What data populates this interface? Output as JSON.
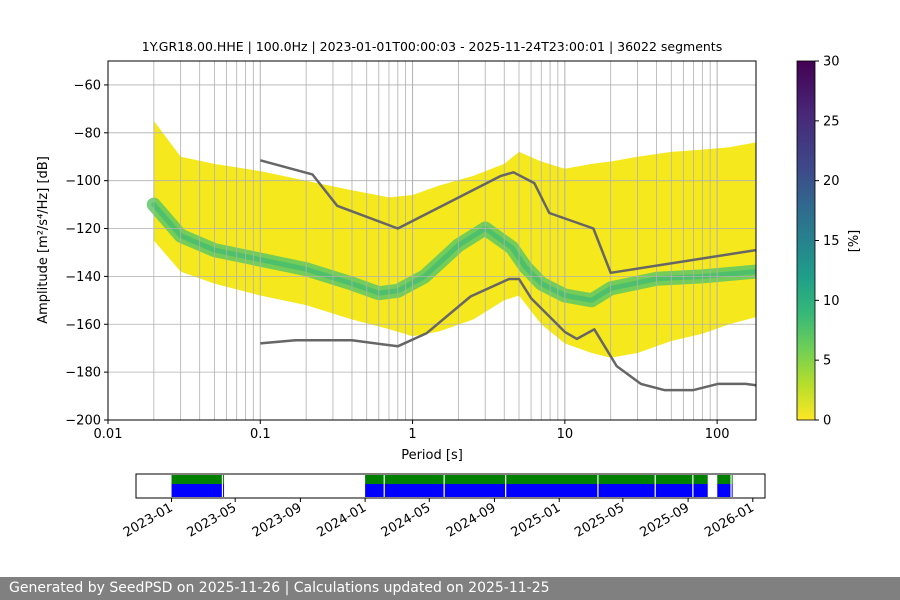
{
  "title": "1Y.GR18.00.HHE | 100.0Hz | 2023-01-01T00:00:03 - 2025-11-24T23:00:01 | 36022 segments",
  "footer": "Generated by SeedPSD on 2025-11-26 | Calculations updated on 2025-11-25",
  "chart_data": [
    {
      "type": "heatmap",
      "title": "1Y.GR18.00.HHE | 100.0Hz | 2023-01-01T00:00:03 - 2025-11-24T23:00:01 | 36022 segments",
      "xlabel": "Period [s]",
      "ylabel": "Amplitude [m²/s⁴/Hz] [dB]",
      "x_scale": "log",
      "xlim": [
        0.01,
        180
      ],
      "ylim": [
        -200,
        -50
      ],
      "x_ticks": [
        {
          "v": 0.01,
          "label": "0.01"
        },
        {
          "v": 0.1,
          "label": "0.1"
        },
        {
          "v": 1,
          "label": "1"
        },
        {
          "v": 10,
          "label": "10"
        },
        {
          "v": 100,
          "label": "100"
        }
      ],
      "y_ticks": [
        -200,
        -180,
        -160,
        -140,
        -120,
        -100,
        -80,
        -60
      ],
      "grid": true,
      "colormap": "viridis",
      "colorbar": {
        "label": "[%]",
        "range": [
          0,
          30
        ],
        "ticks": [
          0,
          5,
          10,
          15,
          20,
          25,
          30
        ]
      },
      "period_range": [
        0.02,
        180
      ],
      "psd_envelope": {
        "period": [
          0.02,
          0.03,
          0.05,
          0.1,
          0.2,
          0.4,
          0.7,
          1.0,
          1.5,
          2.5,
          4.0,
          5.0,
          7.0,
          10,
          15,
          20,
          30,
          50,
          80,
          120,
          180
        ],
        "upper_db": [
          -75,
          -90,
          -93,
          -96,
          -100,
          -104,
          -107,
          -106,
          -102,
          -98,
          -93,
          -88,
          -92,
          -95,
          -93,
          -92,
          -90,
          -88,
          -87,
          -86,
          -84
        ],
        "lower_db": [
          -125,
          -138,
          -143,
          -148,
          -152,
          -158,
          -162,
          -165,
          -163,
          -158,
          -150,
          -148,
          -160,
          -168,
          -172,
          -174,
          -172,
          -167,
          -164,
          -160,
          -157
        ]
      },
      "psd_mode": {
        "period": [
          0.02,
          0.03,
          0.05,
          0.1,
          0.2,
          0.4,
          0.6,
          0.8,
          1.2,
          2.0,
          3.0,
          4.5,
          5.5,
          7.0,
          10,
          15,
          20,
          40,
          80,
          180
        ],
        "db": [
          -110,
          -123,
          -129,
          -133,
          -137,
          -143,
          -147,
          -146,
          -140,
          -127,
          -120,
          -128,
          -136,
          -143,
          -148,
          -150,
          -145,
          -141,
          -140,
          -138
        ]
      },
      "model_lines": {
        "high": {
          "period": [
            0.1,
            0.22,
            0.32,
            0.8,
            3.8,
            4.6,
            6.3,
            7.9,
            15.4,
            20,
            180
          ],
          "db": [
            -91.5,
            -97.4,
            -110.5,
            -120,
            -98,
            -96.5,
            -101,
            -113.5,
            -120,
            -138.5,
            -129
          ]
        },
        "low": {
          "period": [
            0.1,
            0.17,
            0.4,
            0.8,
            1.24,
            2.4,
            4.3,
            5.0,
            6.0,
            10,
            12,
            15.6,
            21.9,
            31.6,
            45,
            70,
            101,
            154,
            180
          ],
          "db": [
            -168,
            -166.7,
            -166.7,
            -169.2,
            -163.7,
            -148.4,
            -141.1,
            -141.1,
            -149.1,
            -163.2,
            -166.1,
            -162.1,
            -177.5,
            -184.9,
            -187.5,
            -187.5,
            -184.9,
            -184.9,
            -185.5
          ]
        }
      }
    },
    {
      "type": "bar",
      "xlabel": "",
      "x_ticks": [
        "2023-01",
        "2023-05",
        "2023-09",
        "2024-01",
        "2024-05",
        "2024-09",
        "2025-01",
        "2025-05",
        "2025-09",
        "2026-01"
      ],
      "xlim": [
        "2022-10-26",
        "2026-01-24"
      ],
      "coverage": [
        {
          "start": "2023-01-01",
          "end": "2023-04-10",
          "gaps": [
            "2023-04-07"
          ]
        },
        {
          "start": "2024-01-01",
          "end": "2025-10-08",
          "gaps": [
            "2024-02-06",
            "2024-05-29",
            "2024-09-22",
            "2025-03-15",
            "2025-07-01",
            "2025-09-10"
          ]
        },
        {
          "start": "2025-10-26",
          "end": "2025-11-24",
          "gaps": [
            "2025-11-21"
          ]
        }
      ],
      "colors": {
        "top_band": "#008000",
        "bottom_band": "#0000ff",
        "gap": "#ffffff"
      }
    }
  ]
}
